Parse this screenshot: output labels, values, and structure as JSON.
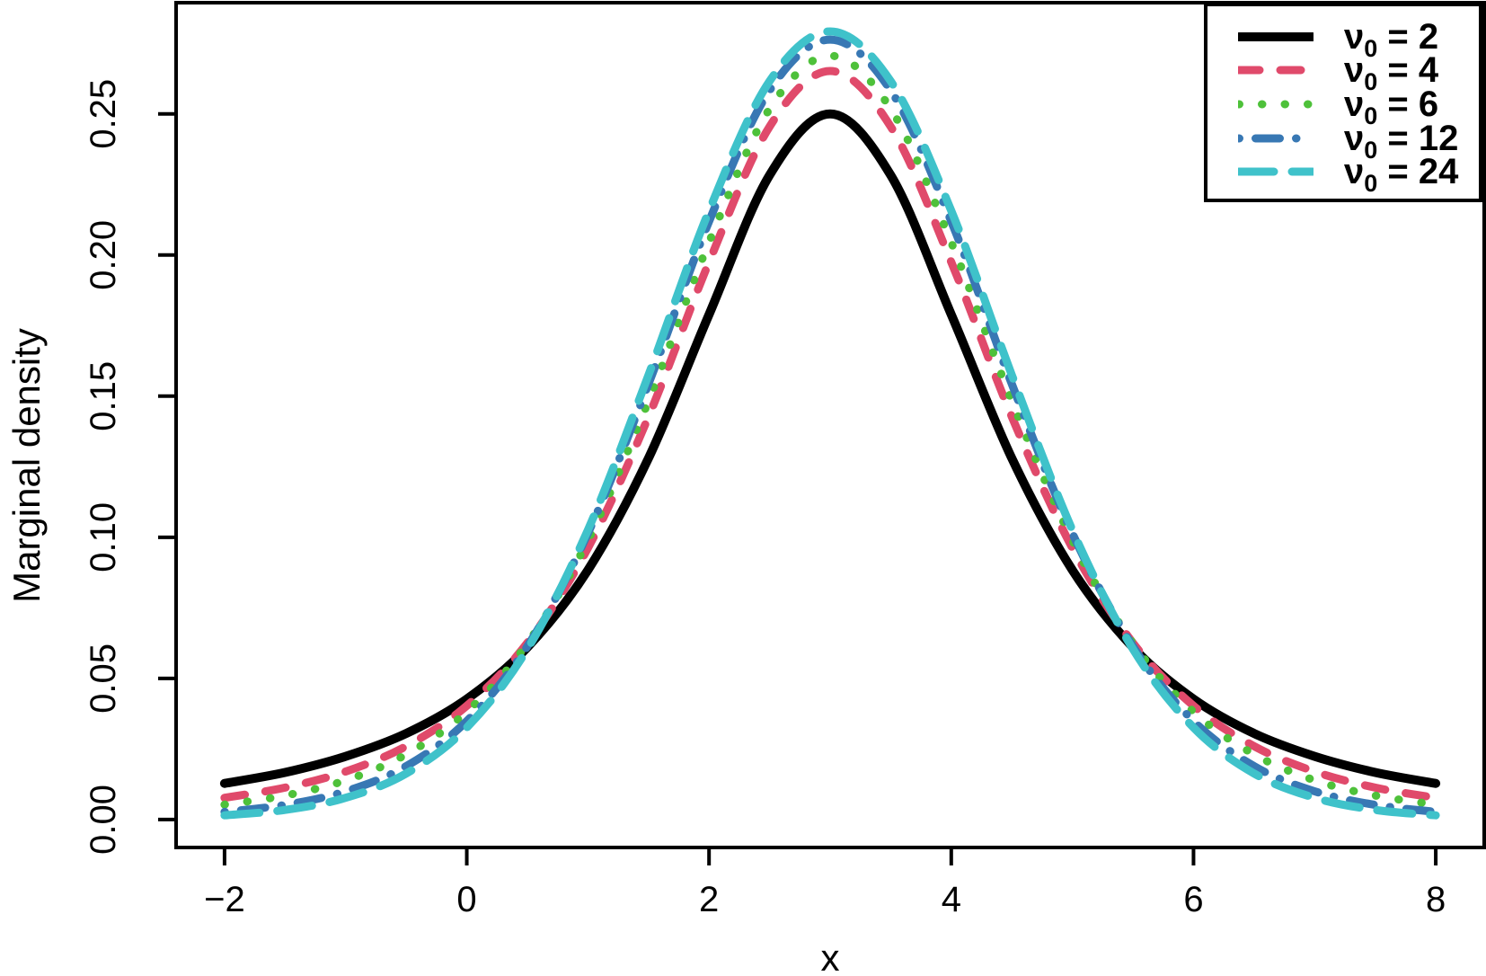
{
  "chart_data": {
    "type": "line",
    "title": "",
    "xlabel": "x",
    "ylabel": "Marginal density",
    "grid": false,
    "background": "#ffffff",
    "axis_color": "#000000",
    "xlim": [
      -2.4,
      8.4
    ],
    "ylim": [
      -0.0099,
      0.2894
    ],
    "x_ticks": {
      "values": [
        -2,
        0,
        2,
        4,
        6,
        8
      ],
      "labels": [
        "−2",
        "0",
        "2",
        "4",
        "6",
        "8"
      ]
    },
    "y_ticks": {
      "values": [
        0,
        0.05,
        0.1,
        0.15,
        0.2,
        0.25
      ],
      "labels": [
        "0.00",
        "0.05",
        "0.10",
        "0.15",
        "0.20",
        "0.25"
      ]
    },
    "x": [
      -2,
      -1.5,
      -1,
      -0.5,
      0,
      0.5,
      1,
      1.5,
      2,
      2.5,
      3,
      3.5,
      4,
      4.5,
      5,
      5.5,
      6,
      6.5,
      7,
      7.5,
      8
    ],
    "series": [
      {
        "name": "nu0 = 2",
        "legend_value": "2",
        "color": "#000000",
        "style": "solid",
        "width": 10,
        "values": [
          0.0128,
          0.0167,
          0.0224,
          0.0305,
          0.0427,
          0.061,
          0.0884,
          0.128,
          0.1789,
          0.2283,
          0.25,
          0.2283,
          0.1789,
          0.128,
          0.0884,
          0.061,
          0.0427,
          0.0305,
          0.0224,
          0.0167,
          0.0128
        ]
      },
      {
        "name": "nu0 = 4",
        "legend_value": "4",
        "color": "#E04A6B",
        "style": "dashed",
        "width": 9,
        "values": [
          0.0077,
          0.0113,
          0.017,
          0.026,
          0.0403,
          0.0626,
          0.0962,
          0.1427,
          0.1975,
          0.2455,
          0.2652,
          0.2455,
          0.1975,
          0.1427,
          0.0962,
          0.0626,
          0.0403,
          0.026,
          0.017,
          0.0113,
          0.0077
        ]
      },
      {
        "name": "nu0 = 6",
        "legend_value": "6",
        "color": "#4EC13A",
        "style": "dotted",
        "width": 9,
        "values": [
          0.0053,
          0.0085,
          0.0139,
          0.0231,
          0.0382,
          0.0624,
          0.0989,
          0.1483,
          0.2045,
          0.2518,
          0.2706,
          0.2518,
          0.2045,
          0.1483,
          0.0989,
          0.0624,
          0.0382,
          0.0231,
          0.0139,
          0.0085,
          0.0053
        ]
      },
      {
        "name": "nu0 = 12",
        "legend_value": "12",
        "color": "#3878B4",
        "style": "dotdash",
        "width": 9,
        "values": [
          0.0027,
          0.0052,
          0.01,
          0.0189,
          0.0349,
          0.0614,
          0.1014,
          0.1543,
          0.2119,
          0.2583,
          0.2763,
          0.2583,
          0.2119,
          0.1543,
          0.1014,
          0.0614,
          0.0349,
          0.0189,
          0.01,
          0.0052,
          0.0027
        ]
      },
      {
        "name": "nu0 = 24",
        "legend_value": "24",
        "color": "#3FC2CA",
        "style": "longdash",
        "width": 9,
        "values": [
          0.0015,
          0.0034,
          0.0077,
          0.0163,
          0.0326,
          0.0604,
          0.1026,
          0.1575,
          0.2157,
          0.2616,
          0.2792,
          0.2616,
          0.2157,
          0.1575,
          0.1026,
          0.0604,
          0.0326,
          0.0163,
          0.0077,
          0.0034,
          0.0015
        ]
      }
    ]
  },
  "legend": {
    "position": "top-right",
    "symbol": "ν",
    "subscript": "0",
    "equals_sign": "="
  }
}
